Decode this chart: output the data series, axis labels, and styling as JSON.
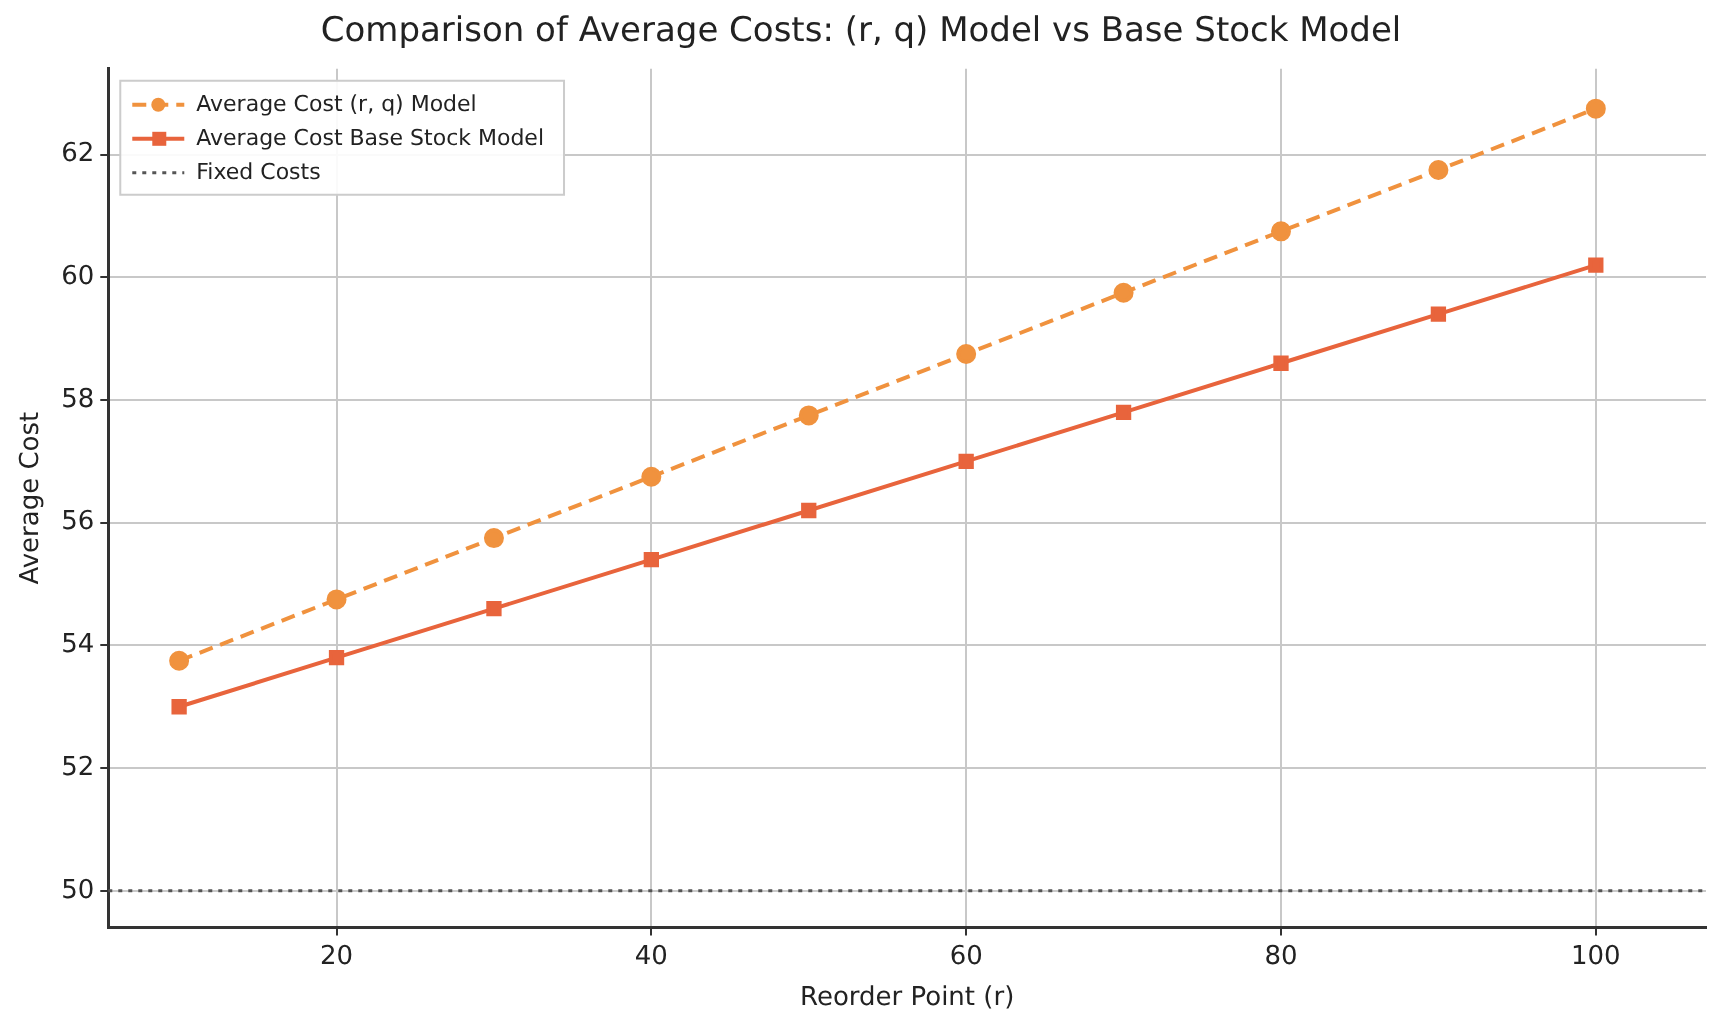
{
  "chart_data": {
    "type": "line",
    "title": "Comparison of Average Costs: (r, q) Model vs Base Stock Model",
    "xlabel": "Reorder Point (r)",
    "ylabel": "Average Cost",
    "x": [
      10,
      20,
      30,
      40,
      50,
      60,
      70,
      80,
      90,
      100
    ],
    "series": [
      {
        "name": "Average Cost (r, q) Model",
        "color": "#f0923e",
        "values": [
          53.75,
          54.75,
          55.75,
          56.75,
          57.75,
          58.75,
          59.75,
          60.75,
          61.75,
          62.75
        ],
        "marker": "circle",
        "line_style": "dashed"
      },
      {
        "name": "Average Cost Base Stock Model",
        "color": "#e8643c",
        "values": [
          53.0,
          53.8,
          54.6,
          55.4,
          56.2,
          57.0,
          57.8,
          58.6,
          59.4,
          60.2
        ],
        "marker": "square",
        "line_style": "solid"
      }
    ],
    "ref_lines": [
      {
        "axis": "y",
        "value": 50,
        "label": "Fixed Costs",
        "color": "#555555",
        "line_style": "dotted"
      }
    ],
    "xlim": [
      5.5,
      107
    ],
    "xticks": [
      20,
      40,
      60,
      80,
      100
    ],
    "ylim": [
      49.4,
      63.4
    ],
    "yticks": [
      50,
      52,
      54,
      56,
      58,
      60,
      62
    ],
    "grid": true,
    "legend": "top left"
  }
}
